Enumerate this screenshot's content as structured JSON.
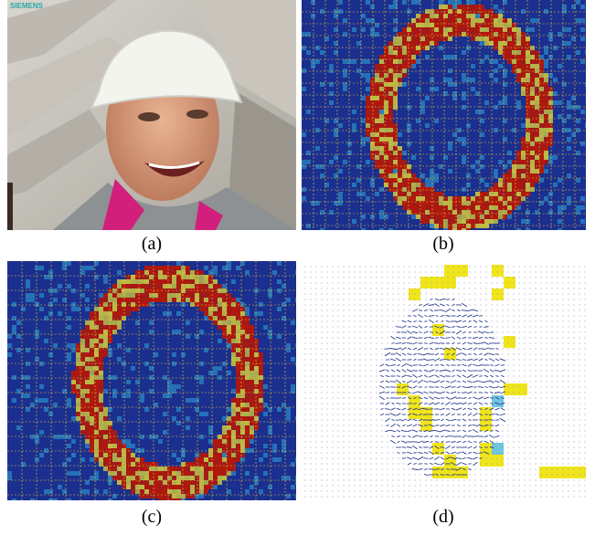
{
  "panels": [
    {
      "id": "a",
      "caption": "(a)",
      "type": "photo",
      "logo": "SIEMENS"
    },
    {
      "id": "b",
      "caption": "(b)",
      "type": "heatmap"
    },
    {
      "id": "c",
      "caption": "(c)",
      "type": "heatmap"
    },
    {
      "id": "d",
      "caption": "(d)",
      "type": "vector-field"
    }
  ],
  "colors": {
    "heatmap_low": "#1b2f8f",
    "heatmap_mid": "#2fa8d8",
    "heatmap_high": "#b0180c",
    "grid": "#e8c832",
    "highlight_yellow": "#f0e51a",
    "highlight_cyan": "#6ec6df",
    "vector": "#2a3a8a"
  }
}
